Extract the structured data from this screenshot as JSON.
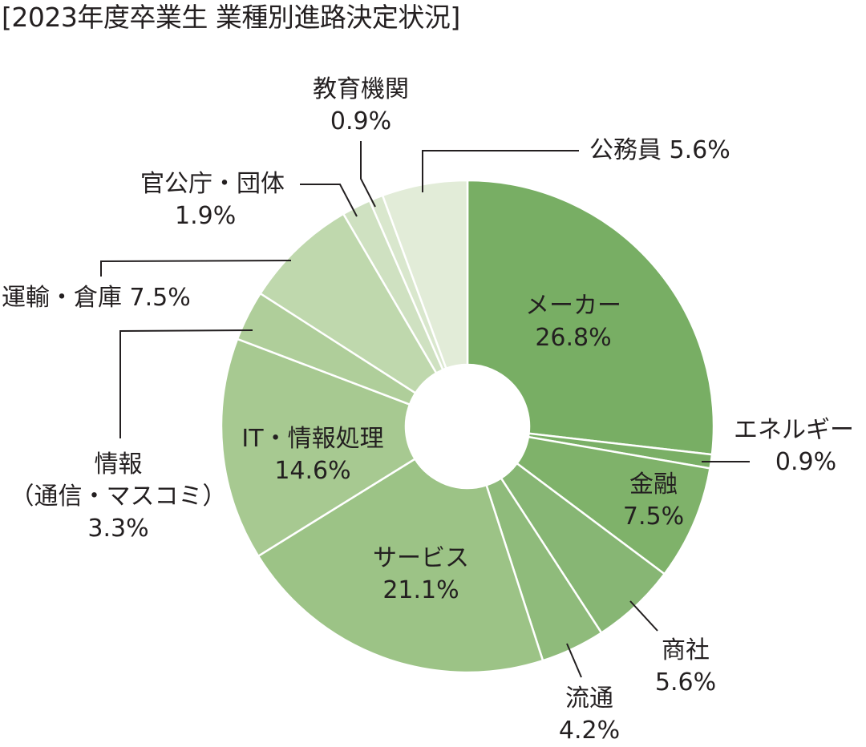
{
  "chart_data": {
    "type": "pie",
    "variant": "donut",
    "title": "[2023年度卒業生 業種別進路決定状況]",
    "unit": "%",
    "start_angle": "12 o'clock",
    "direction": "clockwise",
    "categories": [
      "メーカー",
      "エネルギー",
      "金融",
      "商社",
      "流通",
      "サービス",
      "IT・情報処理",
      "情報（通信・マスコミ）",
      "運輸・倉庫",
      "官公庁・団体",
      "教育機関",
      "公務員"
    ],
    "values": [
      26.8,
      0.9,
      7.5,
      5.6,
      4.2,
      21.1,
      14.6,
      3.3,
      7.5,
      1.9,
      0.9,
      5.6
    ],
    "colors": [
      "#78ae64",
      "#7aaf66",
      "#7fb26a",
      "#87b674",
      "#8fbb7b",
      "#9cc386",
      "#a7c991",
      "#afce9a",
      "#bfd8ad",
      "#cfe1c1",
      "#d9e7cd",
      "#e2ecd8"
    ],
    "legend": "none (callout labels)"
  },
  "title": "[2023年度卒業生 業種別進路決定状況]",
  "labels": {
    "maker": {
      "name": "メーカー",
      "value": "26.8%"
    },
    "energy": {
      "name": "エネルギー",
      "value": "0.9%"
    },
    "finance": {
      "name": "金融",
      "value": "7.5%"
    },
    "trading": {
      "name": "商社",
      "value": "5.6%"
    },
    "retail": {
      "name": "流通",
      "value": "4.2%"
    },
    "service": {
      "name": "サービス",
      "value": "21.1%"
    },
    "it": {
      "name": "IT・情報処理",
      "value": "14.6%"
    },
    "media": {
      "name": "情報",
      "sub": "（通信・マスコミ）",
      "value": "3.3%"
    },
    "transport": {
      "name": "運輸・倉庫",
      "value": "7.5%"
    },
    "gov": {
      "name": "官公庁・団体",
      "value": "1.9%"
    },
    "edu": {
      "name": "教育機関",
      "value": "0.9%"
    },
    "civil": {
      "name": "公務員",
      "value": "5.6%"
    }
  }
}
